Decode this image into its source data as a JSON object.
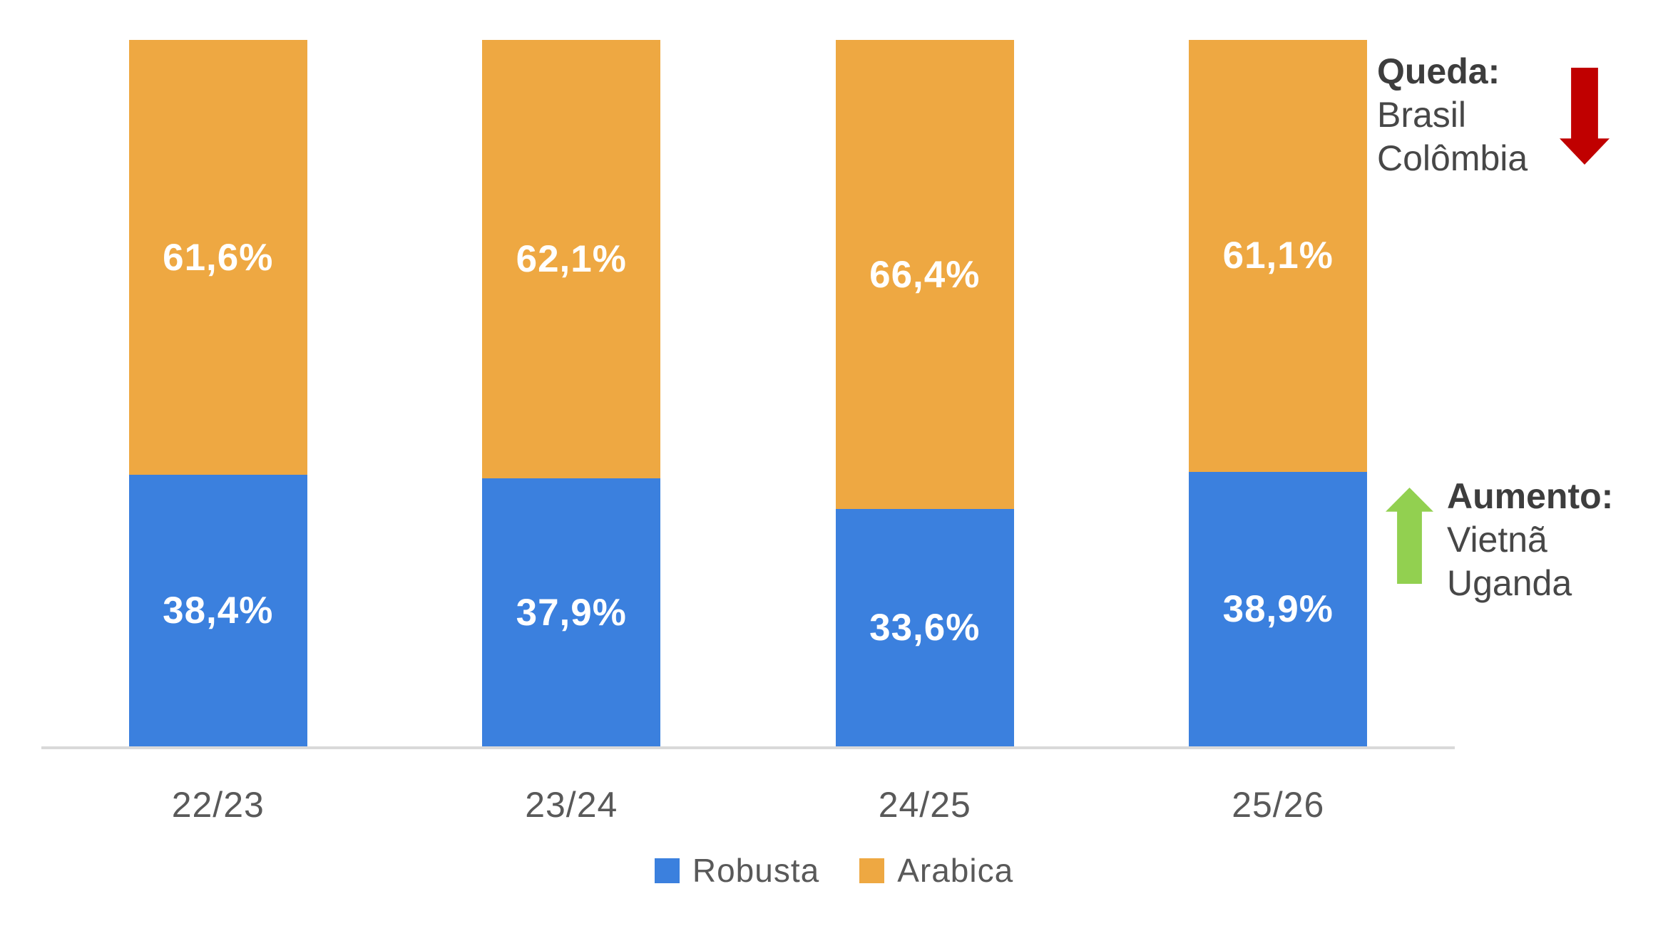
{
  "colors": {
    "robusta_blue": "#3B80DE",
    "arabica_orange": "#EEA842",
    "axis_line": "#D9D9D9",
    "axis_label_gray": "#595959",
    "data_label_white": "#FFFFFF",
    "annotation_title_gray": "#3D3D3D",
    "annotation_text_gray": "#474747",
    "decrease_arrow_red": "#C00000",
    "increase_arrow_green": "#92D050",
    "background": "#FFFFFF"
  },
  "chart_data": {
    "type": "bar",
    "stacked": true,
    "orientation": "vertical",
    "unit": "%",
    "title": "",
    "xlabel": "",
    "ylabel": "",
    "ylim": [
      0,
      100
    ],
    "grid": false,
    "y_axis_visible": false,
    "legend_position": "bottom",
    "categories": [
      "22/23",
      "23/24",
      "24/25",
      "25/26"
    ],
    "series": [
      {
        "name": "Robusta",
        "color_key": "robusta_blue",
        "values": [
          38.4,
          37.9,
          33.6,
          38.9
        ],
        "labels": [
          "38,4%",
          "37,9%",
          "33,6%",
          "38,9%"
        ]
      },
      {
        "name": "Arabica",
        "color_key": "arabica_orange",
        "values": [
          61.6,
          62.1,
          66.4,
          61.1
        ],
        "labels": [
          "61,6%",
          "62,1%",
          "66,4%",
          "61,1%"
        ]
      }
    ]
  },
  "legend": {
    "items": [
      {
        "label": "Robusta",
        "color_key": "robusta_blue"
      },
      {
        "label": "Arabica",
        "color_key": "arabica_orange"
      }
    ]
  },
  "annotations": {
    "decrease": {
      "title": "Queda:",
      "lines": [
        "Brasil",
        "Colômbia"
      ],
      "arrow_icon": "down-arrow",
      "arrow_color_key": "decrease_arrow_red"
    },
    "increase": {
      "title": "Aumento:",
      "lines": [
        "Vietnã",
        "Uganda"
      ],
      "arrow_icon": "up-arrow",
      "arrow_color_key": "increase_arrow_green"
    }
  }
}
